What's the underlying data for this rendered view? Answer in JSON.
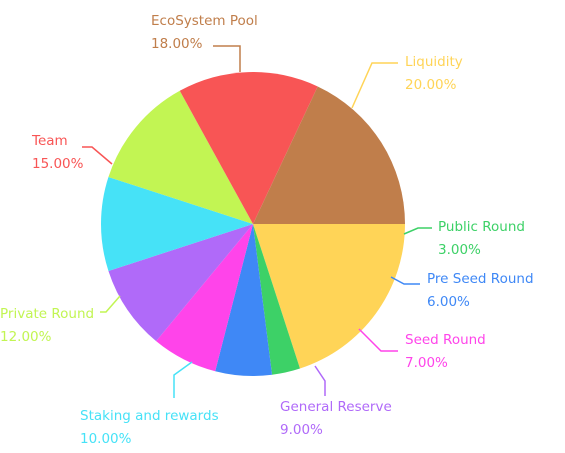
{
  "chart_data": {
    "type": "pie",
    "title": "",
    "slices": [
      {
        "label": "Liquidity",
        "value": 20.0,
        "value_text": "20.00%",
        "color": "#FFD457"
      },
      {
        "label": "Public Round",
        "value": 3.0,
        "value_text": "3.00%",
        "color": "#3DD167"
      },
      {
        "label": "Pre Seed Round",
        "value": 6.0,
        "value_text": "6.00%",
        "color": "#3F88F6"
      },
      {
        "label": "Seed Round",
        "value": 7.0,
        "value_text": "7.00%",
        "color": "#FF44EA"
      },
      {
        "label": "General Reserve",
        "value": 9.0,
        "value_text": "9.00%",
        "color": "#B06AF9"
      },
      {
        "label": "Staking and rewards",
        "value": 10.0,
        "value_text": "10.00%",
        "color": "#46E2F7"
      },
      {
        "label": "Private Round",
        "value": 12.0,
        "value_text": "12.00%",
        "color": "#C2F553"
      },
      {
        "label": "Team",
        "value": 15.0,
        "value_text": "15.00%",
        "color": "#F85555"
      },
      {
        "label": "EcoSystem Pool",
        "value": 18.0,
        "value_text": "18.00%",
        "color": "#C07E4B"
      }
    ],
    "start_angle": "3 o'clock, clockwise",
    "legend": "none (callout labels)"
  }
}
